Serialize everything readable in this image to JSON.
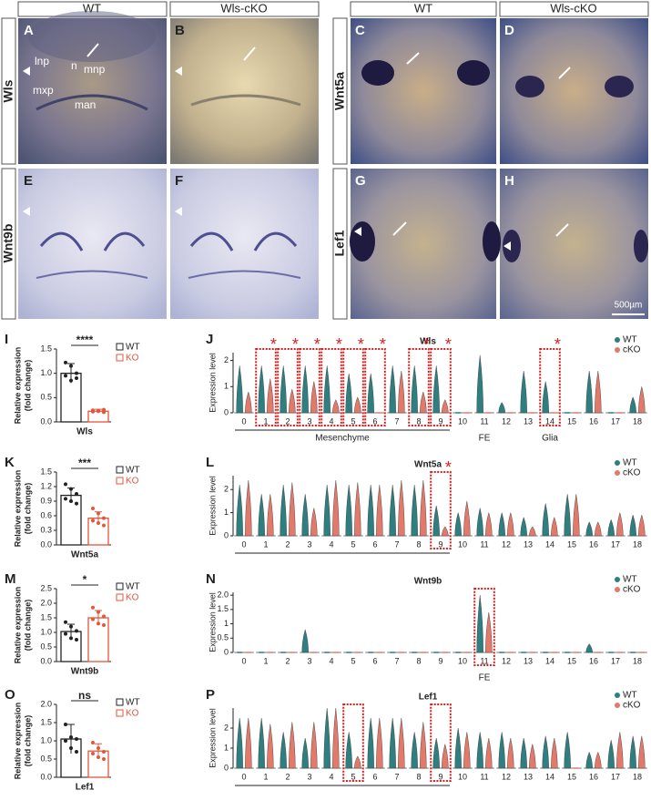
{
  "header": {
    "columns": [
      "WT",
      "Wls-cKO",
      "WT",
      "Wls-cKO"
    ]
  },
  "row_labels": [
    "Wls",
    "Wnt9b",
    "Wnt5a",
    "Lef1"
  ],
  "panels": [
    {
      "letter": "A",
      "annotations": [
        "lnp",
        "n",
        "mnp",
        "mxp",
        "man"
      ]
    },
    {
      "letter": "B"
    },
    {
      "letter": "C"
    },
    {
      "letter": "D"
    },
    {
      "letter": "E"
    },
    {
      "letter": "F"
    },
    {
      "letter": "G"
    },
    {
      "letter": "H"
    }
  ],
  "scale_bar": "500µm",
  "chart_data": [
    {
      "type": "bar",
      "panel": "I",
      "xlabel": "Wls",
      "ylabel": [
        "Relative expression",
        "(fold change)"
      ],
      "significance": "****",
      "ylim": [
        0,
        1.5
      ],
      "yticks": [
        {
          "value": 0,
          "label": "0.0"
        },
        0.5,
        {
          "value": 1,
          "label": "1.0"
        },
        1.5
      ],
      "series": [
        {
          "name": "WT",
          "color": "#222222",
          "values": [
            1.0
          ],
          "errors": [
            0.2
          ],
          "points": [
            1.22,
            1.15,
            1.0,
            0.95,
            0.85,
            0.9
          ]
        },
        {
          "name": "KO",
          "color": "#e4553a",
          "values": [
            0.22
          ],
          "errors": [
            0.04
          ],
          "points": [
            0.24,
            0.22,
            0.2,
            0.21,
            0.23,
            0.25
          ]
        }
      ]
    },
    {
      "type": "violin",
      "panel": "J",
      "title": "Wls",
      "ylabel": "Expression level",
      "categories": [
        "0",
        "1",
        "2",
        "3",
        "4",
        "5",
        "6",
        "7",
        "8",
        "9",
        "10",
        "11",
        "12",
        "13",
        "14",
        "15",
        "16",
        "17",
        "18"
      ],
      "ylim": [
        0,
        2.3
      ],
      "yticks": [
        0,
        1,
        2
      ],
      "highlight": [
        1,
        2,
        3,
        4,
        5,
        6,
        8,
        9,
        14
      ],
      "star": "*",
      "groups": [
        {
          "label": "Mesenchyme",
          "from": 0,
          "to": 9
        },
        {
          "label": "FE",
          "from": 11,
          "to": 11
        },
        {
          "label": "Glia",
          "from": 14,
          "to": 14
        }
      ],
      "series": [
        {
          "name": "WT",
          "color": "#2f7f80",
          "values": [
            1.8,
            1.8,
            1.8,
            1.8,
            1.8,
            1.5,
            1.5,
            1.8,
            1.8,
            1.8,
            0,
            2.2,
            0.4,
            1.6,
            1.2,
            0,
            1.6,
            0,
            0.6
          ]
        },
        {
          "name": "cKO",
          "color": "#e27a6b",
          "values": [
            0.8,
            1.3,
            0.9,
            1.2,
            0.5,
            0.6,
            0,
            1.6,
            0.8,
            0.5,
            0,
            0,
            0,
            0,
            0,
            0,
            1.6,
            0,
            1.0
          ]
        }
      ]
    },
    {
      "type": "bar",
      "panel": "K",
      "xlabel": "Wnt5a",
      "ylabel": [
        "Relative expression",
        "(fold change)"
      ],
      "significance": "***",
      "ylim": [
        0,
        1.5
      ],
      "yticks": [
        {
          "value": 0,
          "label": "0.0"
        },
        0.3,
        0.6,
        0.9,
        1.2,
        1.5
      ],
      "series": [
        {
          "name": "WT",
          "color": "#222222",
          "values": [
            1.02
          ],
          "errors": [
            0.15
          ],
          "points": [
            1.25,
            1.15,
            1.05,
            0.95,
            0.9,
            0.85
          ]
        },
        {
          "name": "KO",
          "color": "#e4553a",
          "values": [
            0.55
          ],
          "errors": [
            0.13
          ],
          "points": [
            0.75,
            0.65,
            0.55,
            0.5,
            0.45,
            0.4
          ]
        }
      ]
    },
    {
      "type": "violin",
      "panel": "L",
      "title": "Wnt5a",
      "ylabel": "Expression level",
      "categories": [
        "0",
        "1",
        "2",
        "3",
        "4",
        "5",
        "6",
        "7",
        "8",
        "9",
        "10",
        "11",
        "12",
        "13",
        "14",
        "15",
        "16",
        "17",
        "18"
      ],
      "ylim": [
        0,
        2.6
      ],
      "yticks": [
        0,
        1,
        2
      ],
      "highlight": [
        9
      ],
      "star": "*",
      "groups": [
        {
          "from": 0,
          "to": 9
        }
      ],
      "series": [
        {
          "name": "WT",
          "color": "#2f7f80",
          "values": [
            2.2,
            1.8,
            2.2,
            1.8,
            2.2,
            2.2,
            2.2,
            2.2,
            2.2,
            1.3,
            1.0,
            1.2,
            1.0,
            0.8,
            1.4,
            1.8,
            0.6,
            0.7,
            0.9
          ]
        },
        {
          "name": "cKO",
          "color": "#e27a6b",
          "values": [
            2.4,
            1.8,
            2.3,
            1.2,
            2.4,
            2.3,
            2.2,
            2.4,
            2.4,
            0.4,
            1.5,
            1.0,
            1.0,
            0.4,
            0.8,
            1.8,
            0.6,
            1.0,
            0.9
          ]
        }
      ]
    },
    {
      "type": "bar",
      "panel": "M",
      "xlabel": "Wnt9b",
      "ylabel": [
        "Relative expression",
        "(fold change)"
      ],
      "significance": "*",
      "ylim": [
        0,
        2.5
      ],
      "yticks": [
        {
          "value": 0,
          "label": "0.0"
        },
        0.5,
        {
          "value": 1,
          "label": "1.0"
        },
        1.5,
        {
          "value": 2,
          "label": "2.0"
        },
        2.5
      ],
      "series": [
        {
          "name": "WT",
          "color": "#222222",
          "values": [
            1.03
          ],
          "errors": [
            0.25
          ],
          "points": [
            1.35,
            1.2,
            1.05,
            0.95,
            0.8,
            0.75
          ]
        },
        {
          "name": "KO",
          "color": "#e4553a",
          "values": [
            1.5
          ],
          "errors": [
            0.25
          ],
          "points": [
            1.85,
            1.7,
            1.55,
            1.45,
            1.3,
            1.25
          ]
        }
      ]
    },
    {
      "type": "violin",
      "panel": "N",
      "title": "Wnt9b",
      "ylabel": "Expression level",
      "categories": [
        "0",
        "1",
        "2",
        "3",
        "4",
        "5",
        "6",
        "7",
        "8",
        "9",
        "10",
        "11",
        "12",
        "13",
        "14",
        "15",
        "16",
        "17",
        "18"
      ],
      "ylim": [
        0,
        2.1
      ],
      "yticks": [
        0,
        0.5,
        1,
        1.5,
        {
          "value": 2,
          "label": "2.0"
        }
      ],
      "highlight": [
        11
      ],
      "groups": [
        {
          "label": "FE",
          "from": 11,
          "to": 11
        }
      ],
      "series": [
        {
          "name": "WT",
          "color": "#2f7f80",
          "values": [
            0,
            0,
            0,
            0.8,
            0,
            0,
            0,
            0,
            0,
            0,
            0,
            2.0,
            0,
            0,
            0,
            0,
            0.3,
            0,
            0
          ]
        },
        {
          "name": "cKO",
          "color": "#e27a6b",
          "values": [
            0,
            0,
            0,
            0,
            0,
            0,
            0,
            0,
            0,
            0,
            0,
            1.4,
            0,
            0,
            0,
            0,
            0,
            0,
            0
          ]
        }
      ]
    },
    {
      "type": "bar",
      "panel": "O",
      "xlabel": "Lef1",
      "ylabel": [
        "Relative expression",
        "(fold change)"
      ],
      "significance": "ns",
      "ylim": [
        0,
        2.0
      ],
      "yticks": [
        {
          "value": 0,
          "label": "0.0"
        },
        0.5,
        {
          "value": 1,
          "label": "1.0"
        },
        1.5,
        {
          "value": 2,
          "label": "2.0"
        }
      ],
      "series": [
        {
          "name": "WT",
          "color": "#222222",
          "values": [
            1.05
          ],
          "errors": [
            0.4
          ],
          "points": [
            1.45,
            1.1,
            1.05,
            1.0,
            0.8,
            0.7
          ]
        },
        {
          "name": "KO",
          "color": "#e4553a",
          "values": [
            0.72
          ],
          "errors": [
            0.2
          ],
          "points": [
            0.95,
            0.8,
            0.7,
            0.65,
            0.55,
            0.5
          ]
        }
      ]
    },
    {
      "type": "violin",
      "panel": "P",
      "title": "Lef1",
      "ylabel": "Expression level",
      "categories": [
        "0",
        "1",
        "2",
        "3",
        "4",
        "5",
        "6",
        "7",
        "8",
        "9",
        "10",
        "11",
        "12",
        "13",
        "14",
        "15",
        "16",
        "17",
        "18"
      ],
      "ylim": [
        0,
        3
      ],
      "yticks": [
        0,
        1,
        2
      ],
      "highlight": [
        5,
        9
      ],
      "groups": [
        {
          "from": 0,
          "to": 9
        }
      ],
      "series": [
        {
          "name": "WT",
          "color": "#2f7f80",
          "values": [
            2.5,
            2.5,
            1.8,
            1.5,
            3.0,
            1.8,
            2.5,
            2.5,
            1.8,
            1.5,
            2.0,
            1.8,
            1.8,
            1.5,
            1.6,
            1.8,
            0.8,
            1.4,
            1.6
          ]
        },
        {
          "name": "cKO",
          "color": "#e27a6b",
          "values": [
            2.5,
            2.2,
            2.3,
            2.3,
            3.0,
            0.6,
            2.5,
            2.5,
            2.3,
            1.2,
            1.8,
            1.5,
            1.5,
            1.2,
            1.5,
            0,
            0.8,
            1.8,
            1.6
          ]
        }
      ]
    }
  ]
}
